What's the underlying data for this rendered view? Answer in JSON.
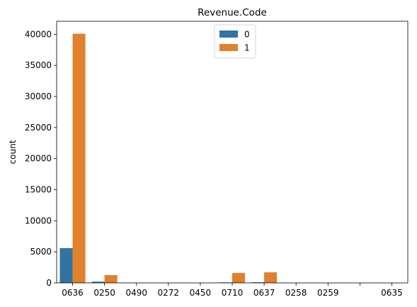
{
  "chart_data": {
    "type": "bar",
    "title": "Revenue.Code",
    "xlabel": "",
    "ylabel": "count",
    "categories": [
      "0636",
      "0250",
      "0490",
      "0272",
      "0450",
      "0710",
      "0637",
      "0258",
      "0259",
      "",
      "0635"
    ],
    "series": [
      {
        "name": "0",
        "color": "#3274a1",
        "values": [
          5600,
          200,
          20,
          10,
          10,
          80,
          100,
          10,
          10,
          5,
          10
        ]
      },
      {
        "name": "1",
        "color": "#e1812c",
        "values": [
          40100,
          1250,
          30,
          20,
          15,
          1600,
          1700,
          15,
          15,
          10,
          20
        ]
      }
    ],
    "ylim": [
      0,
      42100
    ],
    "yticks": [
      0,
      5000,
      10000,
      15000,
      20000,
      25000,
      30000,
      35000,
      40000
    ],
    "grid": false,
    "legend_position": "top-center"
  }
}
